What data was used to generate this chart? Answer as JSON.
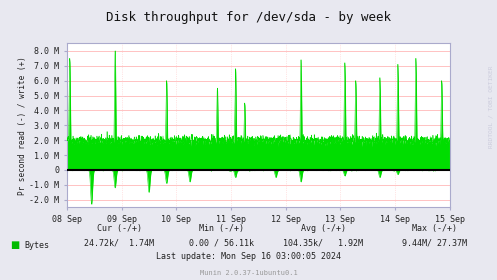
{
  "title": "Disk throughput for /dev/sda - by week",
  "ylabel": "Pr second read (-) / write (+)",
  "background_color": "#e8e8f0",
  "plot_bg_color": "#ffffff",
  "grid_color_h": "#ffaaaa",
  "grid_color_v": "#ffcccc",
  "line_color": "#00dd00",
  "zero_line_color": "#000000",
  "border_color": "#aaaacc",
  "text_color": "#222222",
  "ylim": [
    -2500000.0,
    8500000.0
  ],
  "yticks": [
    -2000000.0,
    -1000000.0,
    0.0,
    1000000.0,
    2000000.0,
    3000000.0,
    4000000.0,
    5000000.0,
    6000000.0,
    7000000.0,
    8000000.0
  ],
  "ytick_labels": [
    "-2.0 M",
    "-1.0 M",
    "0",
    "1.0 M",
    "2.0 M",
    "3.0 M",
    "4.0 M",
    "5.0 M",
    "6.0 M",
    "7.0 M",
    "8.0 M"
  ],
  "xtick_labels": [
    "08 Sep",
    "09 Sep",
    "10 Sep",
    "11 Sep",
    "12 Sep",
    "13 Sep",
    "14 Sep",
    "15 Sep"
  ],
  "legend_label": "Bytes",
  "legend_color": "#00bb00",
  "cur_label": "Cur (-/+)",
  "cur_value": "24.72k/  1.74M",
  "min_label": "Min (-/+)",
  "min_value": "0.00 / 56.11k",
  "avg_label": "Avg (-/+)",
  "avg_value": "104.35k/   1.92M",
  "max_label": "Max (-/+)",
  "max_value": "9.44M/ 27.37M",
  "last_update": "Last update: Mon Sep 16 03:00:05 2024",
  "munin_version": "Munin 2.0.37-1ubuntu0.1",
  "rrdtool_label": "RRDTOOL / TOBI OETIKER",
  "seed": 42
}
